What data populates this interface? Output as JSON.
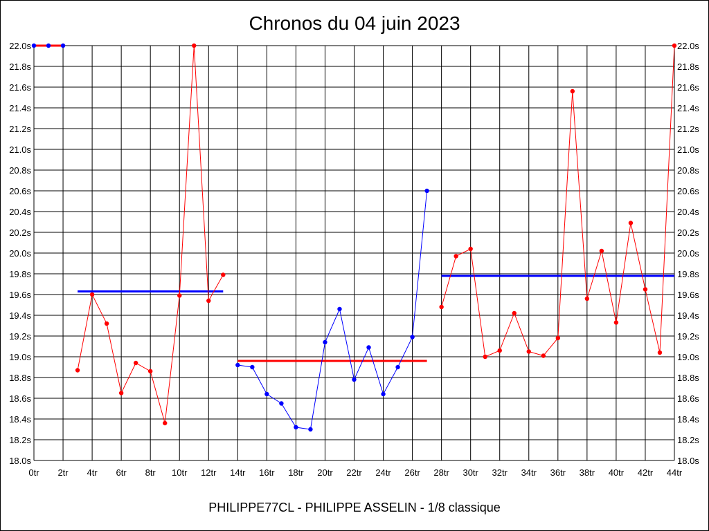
{
  "chart_data": {
    "type": "line",
    "title": "Chronos du 04 juin 2023",
    "subtitle": "PHILIPPE77CL - PHILIPPE ASSELIN - 1/8 classique",
    "xlabel": "",
    "ylabel": "",
    "xlim": [
      0,
      44
    ],
    "ylim": [
      18.0,
      22.0
    ],
    "grid": true,
    "x_ticks": [
      "0tr",
      "2tr",
      "4tr",
      "6tr",
      "8tr",
      "10tr",
      "12tr",
      "14tr",
      "16tr",
      "18tr",
      "20tr",
      "22tr",
      "24tr",
      "26tr",
      "28tr",
      "30tr",
      "32tr",
      "34tr",
      "36tr",
      "38tr",
      "40tr",
      "42tr",
      "44tr"
    ],
    "y_ticks": [
      "18.0s",
      "18.2s",
      "18.4s",
      "18.6s",
      "18.8s",
      "19.0s",
      "19.2s",
      "19.4s",
      "19.6s",
      "19.8s",
      "20.0s",
      "20.2s",
      "20.4s",
      "20.6s",
      "20.8s",
      "21.0s",
      "21.2s",
      "21.4s",
      "21.6s",
      "21.8s",
      "22.0s"
    ],
    "series": [
      {
        "color": "#ff0000",
        "marker_color": "#0000ff",
        "x": [
          0,
          1,
          2
        ],
        "y": [
          22.0,
          22.0,
          22.0
        ]
      },
      {
        "color": "#ff0000",
        "marker_color": "#ff0000",
        "x": [
          3,
          4,
          5,
          6,
          7,
          8,
          9,
          10,
          11,
          12,
          13
        ],
        "y": [
          18.87,
          19.6,
          19.32,
          18.65,
          18.94,
          18.86,
          18.36,
          19.59,
          22.0,
          19.54,
          19.79
        ]
      },
      {
        "color": "#0000ff",
        "marker_color": "#0000ff",
        "x": [
          14,
          15,
          16,
          17,
          18,
          19,
          20,
          21,
          22,
          23,
          24,
          25,
          26,
          27
        ],
        "y": [
          18.92,
          18.9,
          18.64,
          18.55,
          18.32,
          18.3,
          19.14,
          19.46,
          18.78,
          19.09,
          18.64,
          18.9,
          19.19,
          20.6
        ]
      },
      {
        "color": "#ff0000",
        "marker_color": "#ff0000",
        "x": [
          28,
          29,
          30,
          31,
          32,
          33,
          34,
          35,
          36,
          37,
          38,
          39,
          40,
          41,
          42,
          43,
          44
        ],
        "y": [
          19.48,
          19.97,
          20.04,
          19.0,
          19.06,
          19.42,
          19.05,
          19.01,
          19.18,
          21.56,
          19.56,
          20.02,
          19.33,
          20.29,
          19.65,
          19.04,
          22.0
        ]
      }
    ],
    "averages": [
      {
        "color": "#0000ff",
        "x_start": 3,
        "x_end": 13,
        "y": 19.63
      },
      {
        "color": "#ff0000",
        "x_start": 14,
        "x_end": 27,
        "y": 18.96
      },
      {
        "color": "#0000ff",
        "x_start": 28,
        "x_end": 44,
        "y": 19.78
      }
    ]
  }
}
